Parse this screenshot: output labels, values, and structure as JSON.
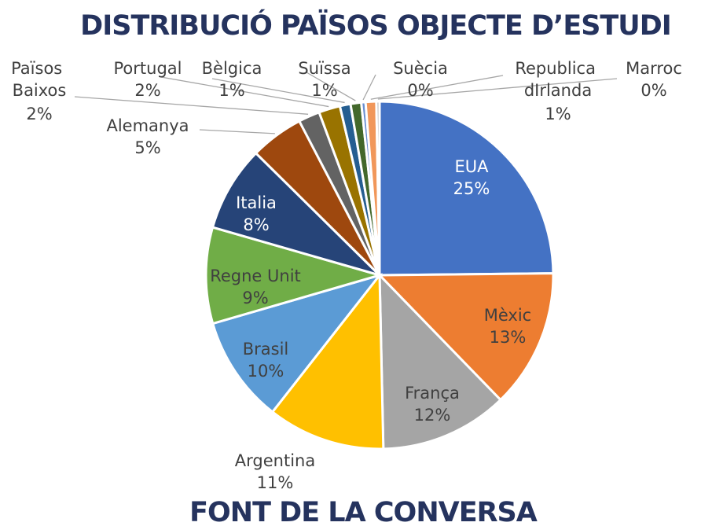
{
  "chart_data": {
    "type": "pie",
    "title": "DISTRIBUCIÓ PAÏSOS OBJECTE D’ESTUDI",
    "caption": "FONT DE LA CONVERSA",
    "categories": [
      "EUA",
      "Mèxic",
      "França",
      "Argentina",
      "Brasil",
      "Regne Unit",
      "Italia",
      "Alemanya",
      "Països Baixos",
      "Portugal",
      "Bèlgica",
      "Suïssa",
      "Suècia",
      "Republica dIrlanda",
      "Marroc"
    ],
    "values": [
      25,
      13,
      12,
      11,
      10,
      9,
      8,
      5,
      2,
      2,
      1,
      1,
      0.4,
      1,
      0.3
    ],
    "value_labels": [
      "25%",
      "13%",
      "12%",
      "11%",
      "10%",
      "9%",
      "8%",
      "5%",
      "2%",
      "2%",
      "1%",
      "1%",
      "0%",
      "1%",
      "0%"
    ],
    "colors": [
      "#4472c4",
      "#ed7d31",
      "#a5a5a5",
      "#ffc000",
      "#5b9bd5",
      "#70ad47",
      "#264478",
      "#9e480e",
      "#636363",
      "#997300",
      "#255e91",
      "#43682b",
      "#698ed0",
      "#f1975a",
      "#b7b7b7"
    ]
  }
}
